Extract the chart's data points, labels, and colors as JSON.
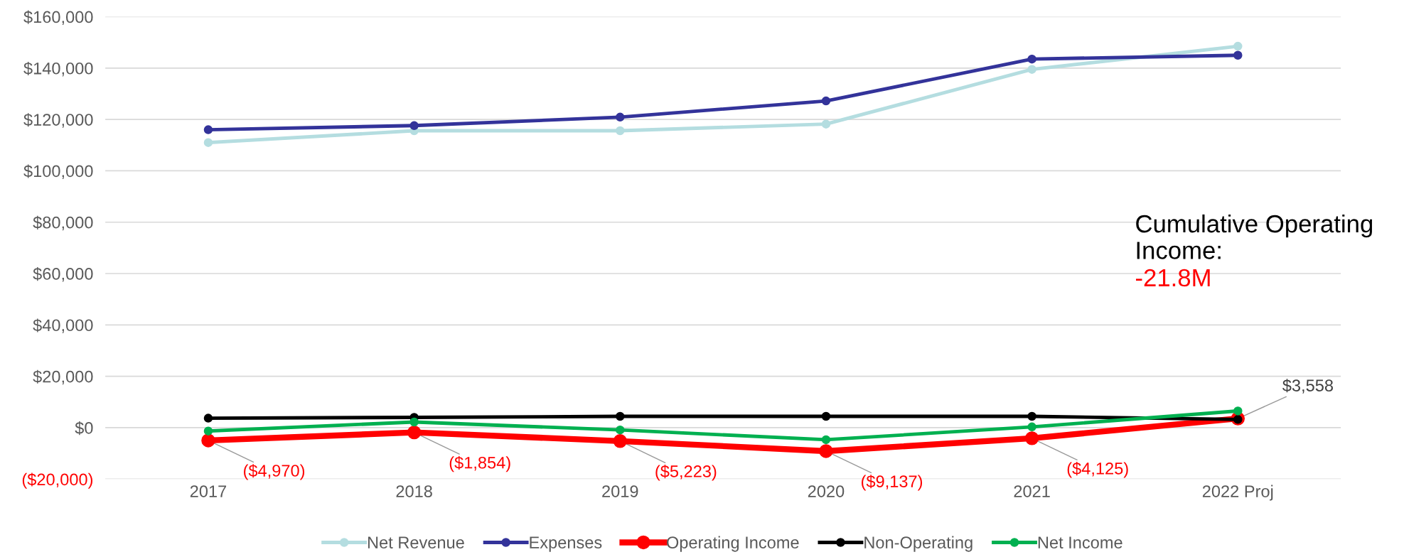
{
  "chart_data": {
    "type": "line",
    "categories": [
      "2017",
      "2018",
      "2019",
      "2020",
      "2021",
      "2022 Proj"
    ],
    "series": [
      {
        "name": "Net Revenue",
        "color": "#b4dde0",
        "values": [
          111000,
          115600,
          115600,
          118200,
          139500,
          148500
        ]
      },
      {
        "name": "Expenses",
        "color": "#33339a",
        "values": [
          116000,
          117600,
          120900,
          127200,
          143500,
          145000
        ]
      },
      {
        "name": "Operating Income",
        "color": "#ff0000",
        "values": [
          -4970,
          -1854,
          -5223,
          -9137,
          -4125,
          3558
        ],
        "value_labels": [
          "($4,970)",
          "($1,854)",
          "($5,223)",
          "($9,137)",
          "($4,125)",
          "$3,558"
        ]
      },
      {
        "name": "Non-Operating",
        "color": "#000000",
        "values": [
          3700,
          4000,
          4400,
          4400,
          4400,
          3200
        ]
      },
      {
        "name": "Net Income",
        "color": "#00b050",
        "values": [
          -1300,
          2200,
          -900,
          -4700,
          300,
          6500
        ]
      }
    ],
    "ylim": [
      -20000,
      160000
    ],
    "yticks": [
      {
        "value": -20000,
        "label": "($20,000)"
      },
      {
        "value": 0,
        "label": "$0"
      },
      {
        "value": 20000,
        "label": "$20,000"
      },
      {
        "value": 40000,
        "label": "$40,000"
      },
      {
        "value": 60000,
        "label": "$60,000"
      },
      {
        "value": 80000,
        "label": "$80,000"
      },
      {
        "value": 100000,
        "label": "$100,000"
      },
      {
        "value": 120000,
        "label": "$120,000"
      },
      {
        "value": 140000,
        "label": "$140,000"
      },
      {
        "value": 160000,
        "label": "$160,000"
      }
    ],
    "grid": "y",
    "legend": "bottom",
    "marker": "circle",
    "line_style": "solid",
    "annotations": [
      "Cumulative Operating Income:",
      "-21.8M"
    ]
  }
}
